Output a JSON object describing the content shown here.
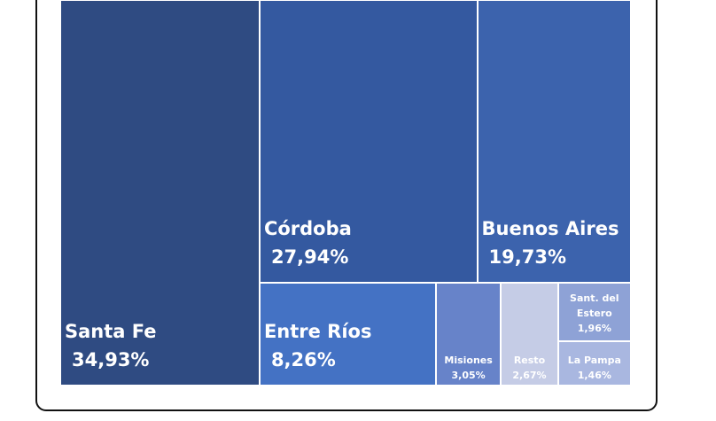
{
  "chart_data": {
    "type": "treemap",
    "categories": [
      "Santa Fe",
      "Córdoba",
      "Buenos Aires",
      "Entre Ríos",
      "Misiones",
      "Resto",
      "Sant. del Estero",
      "La Pampa"
    ],
    "values": [
      34.93,
      27.94,
      19.73,
      8.26,
      3.05,
      2.67,
      1.96,
      1.46
    ],
    "value_labels": [
      "34,93%",
      "27,94%",
      "19,73%",
      "8,26%",
      "3,05%",
      "2,67%",
      "1,96%",
      "1,46%"
    ],
    "colors": [
      "#2f4b82",
      "#3459a0",
      "#3c63ad",
      "#4472c4",
      "#6783c9",
      "#c5cce6",
      "#8ea2d6",
      "#a9b7e0"
    ]
  }
}
